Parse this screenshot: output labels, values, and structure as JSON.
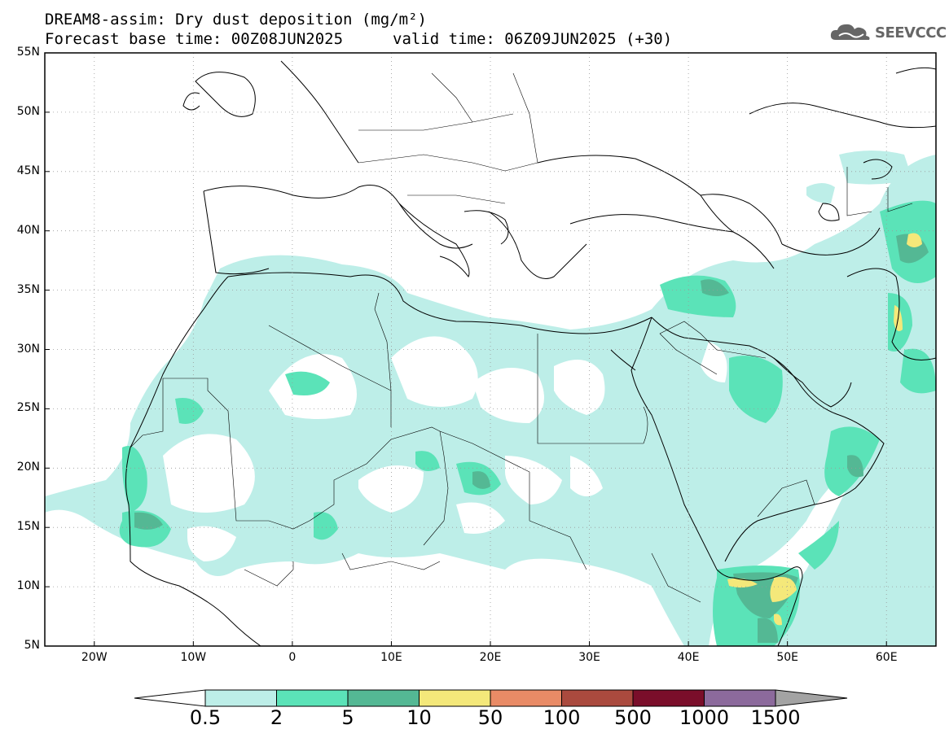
{
  "header": {
    "title_line1": "DREAM8-assim: Dry dust deposition (mg/m²)",
    "title_line2": "Forecast base time: 00Z08JUN2025",
    "valid_time": "valid time: 06Z09JUN2025 (+30)",
    "logo_text": "SEEVCCC",
    "logo_icon": "cloud-icon"
  },
  "map": {
    "lon_range": [
      -25,
      65
    ],
    "lat_range": [
      5,
      55
    ],
    "lat_labels": [
      "55N",
      "50N",
      "45N",
      "40N",
      "35N",
      "30N",
      "25N",
      "20N",
      "15N",
      "10N",
      "5N"
    ],
    "lon_labels": [
      "20W",
      "10W",
      "0",
      "10E",
      "20E",
      "30E",
      "40E",
      "50E",
      "60E"
    ],
    "lat_values": [
      55,
      50,
      45,
      40,
      35,
      30,
      25,
      20,
      15,
      10,
      5
    ],
    "lon_values": [
      -20,
      -10,
      0,
      10,
      20,
      30,
      40,
      50,
      60
    ],
    "grid": true
  },
  "colorbar": {
    "labels": [
      "0.5",
      "2",
      "5",
      "10",
      "50",
      "100",
      "500",
      "1000",
      "1500"
    ],
    "colors": [
      "#bdeee8",
      "#5be3b8",
      "#54b894",
      "#f4e87a",
      "#e98b66",
      "#aa4a3e",
      "#7a0e2a",
      "#8c6a9c",
      "#a3a3a3"
    ]
  }
}
